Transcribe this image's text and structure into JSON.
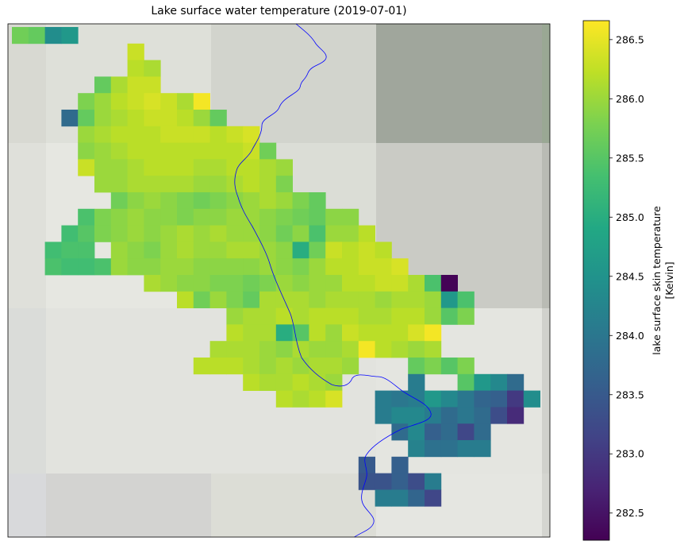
{
  "chart_data": {
    "type": "heatmap",
    "title": "Lake surface water temperature (2019-07-01)",
    "colorbar": {
      "label_line1": "lake surface skin temperature",
      "label_line2": "[Kelvin]",
      "vmin": 282.27,
      "vmax": 286.66,
      "ticks": [
        "282.5",
        "283.0",
        "283.5",
        "284.0",
        "284.5",
        "285.0",
        "285.5",
        "286.0",
        "286.5"
      ],
      "colormap": "viridis"
    },
    "grid": {
      "x_start": 15,
      "y_start": 34,
      "cell_w": 20.8,
      "cell_h": 20.8
    },
    "cells": [
      [
        0,
        0,
        285.7
      ],
      [
        1,
        0,
        285.6
      ],
      [
        2,
        0,
        284.4
      ],
      [
        3,
        0,
        284.6
      ],
      [
        7,
        1,
        286.3
      ],
      [
        7,
        2,
        286.2
      ],
      [
        8,
        2,
        286.1
      ],
      [
        5,
        3,
        285.6
      ],
      [
        6,
        3,
        286.1
      ],
      [
        7,
        3,
        286.3
      ],
      [
        8,
        3,
        286.3
      ],
      [
        4,
        4,
        285.8
      ],
      [
        5,
        4,
        286.0
      ],
      [
        6,
        4,
        286.2
      ],
      [
        7,
        4,
        286.3
      ],
      [
        8,
        4,
        286.4
      ],
      [
        9,
        4,
        286.3
      ],
      [
        10,
        4,
        286.1
      ],
      [
        11,
        4,
        286.6
      ],
      [
        3,
        5,
        283.8
      ],
      [
        4,
        5,
        285.6
      ],
      [
        5,
        5,
        286.0
      ],
      [
        6,
        5,
        286.1
      ],
      [
        7,
        5,
        286.2
      ],
      [
        8,
        5,
        286.3
      ],
      [
        9,
        5,
        286.3
      ],
      [
        10,
        5,
        286.2
      ],
      [
        11,
        5,
        286.0
      ],
      [
        12,
        5,
        285.6
      ],
      [
        4,
        6,
        286.0
      ],
      [
        5,
        6,
        286.1
      ],
      [
        6,
        6,
        286.2
      ],
      [
        7,
        6,
        286.2
      ],
      [
        8,
        6,
        286.2
      ],
      [
        9,
        6,
        286.3
      ],
      [
        10,
        6,
        286.3
      ],
      [
        11,
        6,
        286.3
      ],
      [
        12,
        6,
        286.2
      ],
      [
        13,
        6,
        286.3
      ],
      [
        14,
        6,
        286.4
      ],
      [
        4,
        7,
        285.9
      ],
      [
        5,
        7,
        286.0
      ],
      [
        6,
        7,
        286.1
      ],
      [
        7,
        7,
        286.2
      ],
      [
        8,
        7,
        286.2
      ],
      [
        9,
        7,
        286.2
      ],
      [
        10,
        7,
        286.2
      ],
      [
        11,
        7,
        286.2
      ],
      [
        12,
        7,
        286.2
      ],
      [
        13,
        7,
        286.2
      ],
      [
        14,
        7,
        286.3
      ],
      [
        15,
        7,
        285.7
      ],
      [
        4,
        8,
        286.3
      ],
      [
        5,
        8,
        286.0
      ],
      [
        6,
        8,
        286.0
      ],
      [
        7,
        8,
        286.1
      ],
      [
        8,
        8,
        286.2
      ],
      [
        9,
        8,
        286.2
      ],
      [
        10,
        8,
        286.2
      ],
      [
        11,
        8,
        286.1
      ],
      [
        12,
        8,
        286.1
      ],
      [
        13,
        8,
        286.2
      ],
      [
        14,
        8,
        286.2
      ],
      [
        15,
        8,
        286.1
      ],
      [
        16,
        8,
        286.0
      ],
      [
        5,
        9,
        286.0
      ],
      [
        6,
        9,
        286.0
      ],
      [
        7,
        9,
        286.1
      ],
      [
        8,
        9,
        286.1
      ],
      [
        9,
        9,
        286.1
      ],
      [
        10,
        9,
        286.1
      ],
      [
        11,
        9,
        286.0
      ],
      [
        12,
        9,
        286.0
      ],
      [
        13,
        9,
        286.1
      ],
      [
        14,
        9,
        286.2
      ],
      [
        15,
        9,
        286.1
      ],
      [
        16,
        9,
        285.8
      ],
      [
        6,
        10,
        285.7
      ],
      [
        7,
        10,
        285.9
      ],
      [
        8,
        10,
        286.0
      ],
      [
        9,
        10,
        285.9
      ],
      [
        10,
        10,
        285.8
      ],
      [
        11,
        10,
        285.7
      ],
      [
        12,
        10,
        285.8
      ],
      [
        13,
        10,
        285.9
      ],
      [
        14,
        10,
        286.0
      ],
      [
        15,
        10,
        286.1
      ],
      [
        16,
        10,
        286.0
      ],
      [
        17,
        10,
        285.8
      ],
      [
        18,
        10,
        285.6
      ],
      [
        4,
        11,
        285.4
      ],
      [
        5,
        11,
        285.8
      ],
      [
        6,
        11,
        285.9
      ],
      [
        7,
        11,
        286.0
      ],
      [
        8,
        11,
        285.9
      ],
      [
        9,
        11,
        285.9
      ],
      [
        10,
        11,
        285.8
      ],
      [
        11,
        11,
        285.9
      ],
      [
        12,
        11,
        285.9
      ],
      [
        13,
        11,
        286.0
      ],
      [
        14,
        11,
        286.0
      ],
      [
        15,
        11,
        285.9
      ],
      [
        16,
        11,
        285.8
      ],
      [
        17,
        11,
        285.7
      ],
      [
        18,
        11,
        285.6
      ],
      [
        19,
        11,
        285.9
      ],
      [
        20,
        11,
        285.9
      ],
      [
        3,
        12,
        285.3
      ],
      [
        4,
        12,
        285.5
      ],
      [
        5,
        12,
        285.8
      ],
      [
        6,
        12,
        285.9
      ],
      [
        7,
        12,
        286.0
      ],
      [
        8,
        12,
        285.9
      ],
      [
        9,
        12,
        286.0
      ],
      [
        10,
        12,
        286.1
      ],
      [
        11,
        12,
        286.0
      ],
      [
        12,
        12,
        286.1
      ],
      [
        13,
        12,
        286.0
      ],
      [
        14,
        12,
        286.0
      ],
      [
        15,
        12,
        285.9
      ],
      [
        16,
        12,
        285.7
      ],
      [
        17,
        12,
        285.9
      ],
      [
        18,
        12,
        285.4
      ],
      [
        19,
        12,
        286.0
      ],
      [
        20,
        12,
        286.0
      ],
      [
        21,
        12,
        286.2
      ],
      [
        2,
        13,
        285.3
      ],
      [
        3,
        13,
        285.4
      ],
      [
        4,
        13,
        285.4
      ],
      [
        6,
        13,
        286.0
      ],
      [
        7,
        13,
        285.9
      ],
      [
        8,
        13,
        285.8
      ],
      [
        9,
        13,
        286.0
      ],
      [
        10,
        13,
        286.1
      ],
      [
        11,
        13,
        286.0
      ],
      [
        12,
        13,
        286.0
      ],
      [
        13,
        13,
        286.1
      ],
      [
        14,
        13,
        286.1
      ],
      [
        15,
        13,
        286.0
      ],
      [
        16,
        13,
        285.9
      ],
      [
        17,
        13,
        285.0
      ],
      [
        18,
        13,
        285.7
      ],
      [
        19,
        13,
        286.3
      ],
      [
        20,
        13,
        286.2
      ],
      [
        21,
        13,
        286.3
      ],
      [
        22,
        13,
        286.2
      ],
      [
        2,
        14,
        285.4
      ],
      [
        3,
        14,
        285.3
      ],
      [
        4,
        14,
        285.3
      ],
      [
        5,
        14,
        285.4
      ],
      [
        6,
        14,
        286.0
      ],
      [
        7,
        14,
        285.9
      ],
      [
        8,
        14,
        285.9
      ],
      [
        9,
        14,
        286.0
      ],
      [
        10,
        14,
        286.0
      ],
      [
        11,
        14,
        285.9
      ],
      [
        12,
        14,
        285.9
      ],
      [
        13,
        14,
        285.9
      ],
      [
        14,
        14,
        285.9
      ],
      [
        15,
        14,
        286.0
      ],
      [
        16,
        14,
        285.9
      ],
      [
        17,
        14,
        285.8
      ],
      [
        18,
        14,
        286.0
      ],
      [
        19,
        14,
        286.2
      ],
      [
        20,
        14,
        286.2
      ],
      [
        21,
        14,
        286.3
      ],
      [
        22,
        14,
        286.3
      ],
      [
        23,
        14,
        286.4
      ],
      [
        8,
        15,
        286.1
      ],
      [
        9,
        15,
        286.0
      ],
      [
        10,
        15,
        285.9
      ],
      [
        11,
        15,
        285.9
      ],
      [
        12,
        15,
        285.8
      ],
      [
        13,
        15,
        285.8
      ],
      [
        14,
        15,
        285.7
      ],
      [
        15,
        15,
        285.8
      ],
      [
        16,
        15,
        286.0
      ],
      [
        17,
        15,
        285.9
      ],
      [
        18,
        15,
        286.0
      ],
      [
        19,
        15,
        286.0
      ],
      [
        20,
        15,
        286.2
      ],
      [
        21,
        15,
        286.2
      ],
      [
        22,
        15,
        286.3
      ],
      [
        23,
        15,
        286.3
      ],
      [
        24,
        15,
        286.1
      ],
      [
        25,
        15,
        285.4
      ],
      [
        26,
        15,
        282.3
      ],
      [
        10,
        16,
        286.2
      ],
      [
        11,
        16,
        285.7
      ],
      [
        12,
        16,
        286.0
      ],
      [
        13,
        16,
        285.8
      ],
      [
        14,
        16,
        285.6
      ],
      [
        15,
        16,
        286.1
      ],
      [
        16,
        16,
        286.1
      ],
      [
        17,
        16,
        286.1
      ],
      [
        18,
        16,
        286.0
      ],
      [
        19,
        16,
        286.1
      ],
      [
        20,
        16,
        286.1
      ],
      [
        21,
        16,
        286.1
      ],
      [
        22,
        16,
        286.0
      ],
      [
        23,
        16,
        286.1
      ],
      [
        24,
        16,
        286.1
      ],
      [
        25,
        16,
        286.0
      ],
      [
        26,
        16,
        284.6
      ],
      [
        27,
        16,
        285.4
      ],
      [
        13,
        17,
        286.0
      ],
      [
        14,
        17,
        286.1
      ],
      [
        15,
        17,
        286.1
      ],
      [
        16,
        17,
        286.2
      ],
      [
        17,
        17,
        286.1
      ],
      [
        18,
        17,
        286.2
      ],
      [
        19,
        17,
        286.2
      ],
      [
        20,
        17,
        286.2
      ],
      [
        21,
        17,
        286.1
      ],
      [
        22,
        17,
        286.1
      ],
      [
        23,
        17,
        286.2
      ],
      [
        24,
        17,
        286.2
      ],
      [
        25,
        17,
        286.0
      ],
      [
        26,
        17,
        285.5
      ],
      [
        27,
        17,
        285.8
      ],
      [
        13,
        18,
        286.2
      ],
      [
        14,
        18,
        286.1
      ],
      [
        15,
        18,
        286.1
      ],
      [
        16,
        18,
        285.0
      ],
      [
        17,
        18,
        285.5
      ],
      [
        18,
        18,
        286.2
      ],
      [
        19,
        18,
        286.0
      ],
      [
        20,
        18,
        286.3
      ],
      [
        21,
        18,
        286.2
      ],
      [
        22,
        18,
        286.2
      ],
      [
        23,
        18,
        286.2
      ],
      [
        24,
        18,
        286.4
      ],
      [
        25,
        18,
        286.6
      ],
      [
        12,
        19,
        286.1
      ],
      [
        13,
        19,
        286.1
      ],
      [
        14,
        19,
        286.1
      ],
      [
        15,
        19,
        286.0
      ],
      [
        16,
        19,
        285.9
      ],
      [
        17,
        19,
        286.1
      ],
      [
        18,
        19,
        286.0
      ],
      [
        19,
        19,
        286.0
      ],
      [
        20,
        19,
        286.1
      ],
      [
        21,
        19,
        286.6
      ],
      [
        22,
        19,
        286.2
      ],
      [
        23,
        19,
        286.1
      ],
      [
        24,
        19,
        286.0
      ],
      [
        25,
        19,
        286.1
      ],
      [
        11,
        20,
        286.2
      ],
      [
        12,
        20,
        286.2
      ],
      [
        13,
        20,
        286.2
      ],
      [
        14,
        20,
        286.1
      ],
      [
        15,
        20,
        286.0
      ],
      [
        16,
        20,
        286.1
      ],
      [
        17,
        20,
        286.0
      ],
      [
        18,
        20,
        286.1
      ],
      [
        19,
        20,
        286.1
      ],
      [
        20,
        20,
        286.0
      ],
      [
        24,
        20,
        285.6
      ],
      [
        25,
        20,
        285.8
      ],
      [
        26,
        20,
        285.5
      ],
      [
        27,
        20,
        285.8
      ],
      [
        14,
        21,
        286.2
      ],
      [
        15,
        21,
        286.1
      ],
      [
        16,
        21,
        286.1
      ],
      [
        17,
        21,
        286.2
      ],
      [
        18,
        21,
        286.1
      ],
      [
        19,
        21,
        286.0
      ],
      [
        24,
        21,
        284.1
      ],
      [
        27,
        21,
        285.5
      ],
      [
        28,
        21,
        284.6
      ],
      [
        29,
        21,
        284.3
      ],
      [
        30,
        21,
        283.8
      ],
      [
        16,
        22,
        286.2
      ],
      [
        17,
        22,
        286.1
      ],
      [
        18,
        22,
        286.2
      ],
      [
        19,
        22,
        286.4
      ],
      [
        22,
        22,
        284.1
      ],
      [
        23,
        22,
        284.0
      ],
      [
        24,
        22,
        284.1
      ],
      [
        25,
        22,
        284.6
      ],
      [
        26,
        22,
        284.3
      ],
      [
        27,
        22,
        284.0
      ],
      [
        28,
        22,
        283.7
      ],
      [
        29,
        22,
        283.6
      ],
      [
        30,
        22,
        283.0
      ],
      [
        31,
        22,
        284.4
      ],
      [
        22,
        23,
        284.1
      ],
      [
        23,
        23,
        284.3
      ],
      [
        24,
        23,
        284.3
      ],
      [
        25,
        23,
        284.1
      ],
      [
        26,
        23,
        283.8
      ],
      [
        27,
        23,
        284.0
      ],
      [
        28,
        23,
        283.8
      ],
      [
        29,
        23,
        283.3
      ],
      [
        30,
        23,
        282.8
      ],
      [
        23,
        24,
        283.8
      ],
      [
        24,
        24,
        284.3
      ],
      [
        25,
        24,
        283.6
      ],
      [
        26,
        24,
        283.8
      ],
      [
        27,
        24,
        283.2
      ],
      [
        28,
        24,
        283.8
      ],
      [
        24,
        25,
        284.2
      ],
      [
        25,
        25,
        283.9
      ],
      [
        26,
        25,
        283.9
      ],
      [
        27,
        25,
        284.1
      ],
      [
        28,
        25,
        284.1
      ],
      [
        21,
        26,
        283.5
      ],
      [
        23,
        26,
        283.6
      ],
      [
        21,
        27,
        283.4
      ],
      [
        22,
        27,
        283.4
      ],
      [
        23,
        27,
        283.6
      ],
      [
        24,
        27,
        283.3
      ],
      [
        25,
        27,
        284.1
      ],
      [
        22,
        28,
        284.1
      ],
      [
        23,
        28,
        284.1
      ],
      [
        24,
        28,
        283.7
      ],
      [
        25,
        28,
        283.2
      ]
    ]
  }
}
